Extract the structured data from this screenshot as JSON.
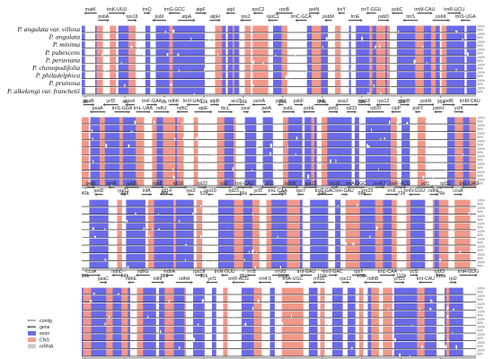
{
  "species": [
    "P. angulata var. villosa",
    "P. angulata",
    "P. minima",
    "P. pubescens",
    "P. peruviana",
    "P. chenopodifolia",
    "P. philadelphica",
    "P. pruinosa",
    "P. alkekengi var. franchetii"
  ],
  "identity_labels": [
    "100%",
    "50%"
  ],
  "legend": [
    {
      "label": "contig",
      "kind": "arrow",
      "color": "#9a9a9a"
    },
    {
      "label": "gene",
      "kind": "arrow",
      "color": "#555555"
    },
    {
      "label": "exon",
      "kind": "box",
      "color": "#6b6be8"
    },
    {
      "label": "CNS",
      "kind": "box",
      "color": "#f4a090"
    },
    {
      "label": "mRNA",
      "kind": "box",
      "color": "#c8c8c8"
    }
  ],
  "colors": {
    "exon": "#6b6be8",
    "cns": "#f0988a",
    "line": "#111111",
    "gene_arrow": "#555555"
  },
  "panels": [
    {
      "ticks": [
        "0k",
        "4k",
        "8k",
        "12k",
        "16k",
        "20k",
        "24k",
        "28k",
        "32k",
        "36k"
      ],
      "genes": [
        "matK",
        "psbA",
        "trnK-UUU",
        "rps16",
        "trnQ",
        "psbI",
        "trnG-GCC",
        "atpA",
        "atpF",
        "atpH",
        "atpI",
        "rps2",
        "rpoC2",
        "rpoC1",
        "rpoB",
        "trnC-GCA",
        "petN",
        "psbM",
        "trnY",
        "trnE",
        "trnT-GGU",
        "psbD",
        "psbC",
        "trnS",
        "trnM-CAU",
        "psbK",
        "trnR-UCU",
        "trnS-UGA"
      ]
    },
    {
      "ticks": [
        "40k",
        "44k",
        "48k",
        "52k",
        "56k",
        "60k",
        "64k",
        "68k",
        "72k",
        "76k"
      ],
      "genes": [
        "psaB",
        "psaA",
        "ycf3",
        "trnS-GGA",
        "rps4",
        "trnL-UAA",
        "trnF-GAA",
        "ndhJ",
        "ndhK",
        "ndhC",
        "trnV-UAC",
        "atpE",
        "atpB",
        "rbcL",
        "accD",
        "psaI",
        "cemA",
        "petA",
        "psbJ",
        "psbL",
        "psbF",
        "psbE",
        "petL",
        "petG",
        "psaJ",
        "rpl33",
        "rps18",
        "rpl20",
        "rps12",
        "clpP",
        "psbB",
        "psbT",
        "psbN",
        "psbH",
        "petB",
        "ycf4",
        "trnM-CAU"
      ]
    },
    {
      "ticks": [
        "80k",
        "84k",
        "88k",
        "92k",
        "96k",
        "100k",
        "104k",
        "108k",
        "112k",
        "116k"
      ],
      "genes": [
        "petB",
        "petD",
        "rpoA",
        "rps11",
        "rpl36",
        "infA",
        "rps8",
        "rpl14",
        "rpl16",
        "rps3",
        "rpl22",
        "rps19",
        "rpl2",
        "rpl23",
        "trnI-CAU",
        "ycf2",
        "ycf15",
        "trnL-CAA",
        "ndhB",
        "rps7",
        "rps12",
        "trnV-GAC",
        "rrn16",
        "trnI-GAU",
        "trnA-UGC",
        "rrn23",
        "rrn4.5",
        "rrn5",
        "trnR-ACG",
        "trnN-GUU",
        "ycf1",
        "ndhF",
        "rpl32",
        "ccsA",
        "trnL-UAG"
      ]
    },
    {
      "ticks": [
        "120k",
        "124k",
        "128k",
        "132k",
        "136k",
        "140k",
        "144k",
        "148k",
        "152k",
        "156k"
      ],
      "genes": [
        "ccsA",
        "psaC",
        "ndhD",
        "ndhE",
        "ndhG",
        "ndhI",
        "ndhA",
        "ndhH",
        "rps15",
        "ycf1",
        "trnN-GUU",
        "trnR-ACG",
        "rrn5",
        "rrn4.5",
        "rrn23",
        "trnA-UGC",
        "trnI-GAU",
        "rrn16",
        "trnV-GAC",
        "rps12",
        "rps7",
        "ndhB",
        "trnL-CAA",
        "ycf15",
        "ycf2",
        "trnI-CAU",
        "rpl23",
        "rpl2",
        "trnH-GUG"
      ]
    }
  ]
}
